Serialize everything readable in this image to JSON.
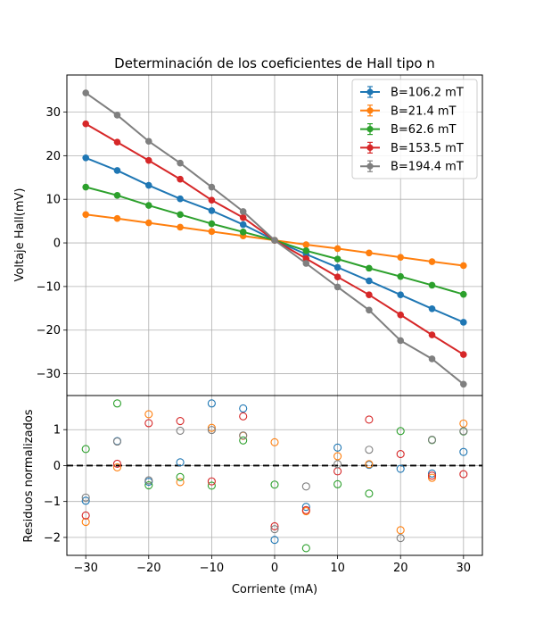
{
  "chart_data": [
    {
      "type": "line",
      "title": "Determinación de los coeficientes de Hall tipo n",
      "xlabel": "",
      "ylabel": "Voltaje Hall(mV)",
      "xlim": [
        -33,
        33
      ],
      "ylim": [
        -35,
        38.5
      ],
      "yticks": [
        -30,
        -20,
        -10,
        0,
        10,
        20,
        30
      ],
      "grid": true,
      "legend_position": "top-right",
      "x": [
        -30,
        -25,
        -20,
        -15,
        -10,
        -5,
        0,
        5,
        10,
        15,
        20,
        25,
        30
      ],
      "series": [
        {
          "name": "B=106.2 mT",
          "color": "#1f77b4",
          "values": [
            19.5,
            16.6,
            13.2,
            10.1,
            7.4,
            4.2,
            0.6,
            -2.6,
            -5.6,
            -8.7,
            -11.9,
            -15.1,
            -18.2
          ]
        },
        {
          "name": "B=21.4 mT",
          "color": "#ff7f0e",
          "values": [
            6.5,
            5.6,
            4.6,
            3.6,
            2.6,
            1.6,
            0.6,
            -0.4,
            -1.3,
            -2.3,
            -3.3,
            -4.3,
            -5.2
          ]
        },
        {
          "name": "B=62.6 mT",
          "color": "#2ca02c",
          "values": [
            12.8,
            10.9,
            8.6,
            6.5,
            4.4,
            2.5,
            0.6,
            -1.8,
            -3.7,
            -5.8,
            -7.7,
            -9.7,
            -11.8
          ]
        },
        {
          "name": "B=153.5 mT",
          "color": "#d62728",
          "values": [
            27.3,
            23.1,
            18.9,
            14.6,
            9.8,
            5.8,
            0.6,
            -3.6,
            -7.8,
            -11.9,
            -16.5,
            -21.1,
            -25.6
          ]
        },
        {
          "name": "B=194.4 mT",
          "color": "#7f7f7f",
          "values": [
            34.4,
            29.3,
            23.3,
            18.3,
            12.8,
            7.2,
            0.6,
            -4.7,
            -10.1,
            -15.4,
            -22.4,
            -26.6,
            -32.4
          ]
        }
      ]
    },
    {
      "type": "scatter",
      "title": "",
      "xlabel": "Corriente (mA)",
      "ylabel": "Residuos normalizados",
      "xlim": [
        -33,
        33
      ],
      "ylim": [
        -2.5,
        1.95
      ],
      "xticks": [
        -30,
        -20,
        -10,
        0,
        10,
        20,
        30
      ],
      "yticks": [
        -2,
        -1,
        0,
        1
      ],
      "grid": true,
      "reference_line": {
        "y": 0,
        "style": "dashed",
        "color": "#000000"
      },
      "x": [
        -30,
        -25,
        -20,
        -15,
        -10,
        -5,
        0,
        5,
        10,
        15,
        20,
        25,
        30
      ],
      "series": [
        {
          "name": "B=106.2 mT",
          "color": "#1f77b4",
          "values": [
            -0.98,
            0.68,
            -0.45,
            0.09,
            1.73,
            1.59,
            -2.07,
            -1.15,
            0.5,
            0.02,
            -0.09,
            -0.22,
            0.38
          ]
        },
        {
          "name": "B=21.4 mT",
          "color": "#ff7f0e",
          "values": [
            -1.57,
            -0.05,
            1.43,
            -0.46,
            1.05,
            0.83,
            0.65,
            -1.27,
            0.26,
            0.04,
            -1.8,
            -0.34,
            1.17
          ]
        },
        {
          "name": "B=62.6 mT",
          "color": "#2ca02c",
          "values": [
            0.46,
            1.73,
            -0.55,
            -0.32,
            -0.56,
            0.7,
            -0.53,
            -2.3,
            -0.52,
            -0.78,
            0.96,
            0.71,
            0.95
          ]
        },
        {
          "name": "B=153.5 mT",
          "color": "#d62728",
          "values": [
            -1.39,
            0.05,
            1.18,
            1.24,
            -0.44,
            1.37,
            -1.69,
            -1.24,
            -0.16,
            1.28,
            0.32,
            -0.28,
            -0.24
          ]
        },
        {
          "name": "B=194.4 mT",
          "color": "#7f7f7f",
          "values": [
            -0.89,
            0.67,
            -0.41,
            0.97,
            0.99,
            0.84,
            -1.77,
            -0.58,
            0.04,
            0.44,
            -2.02,
            0.72,
            0.96
          ]
        }
      ]
    }
  ]
}
